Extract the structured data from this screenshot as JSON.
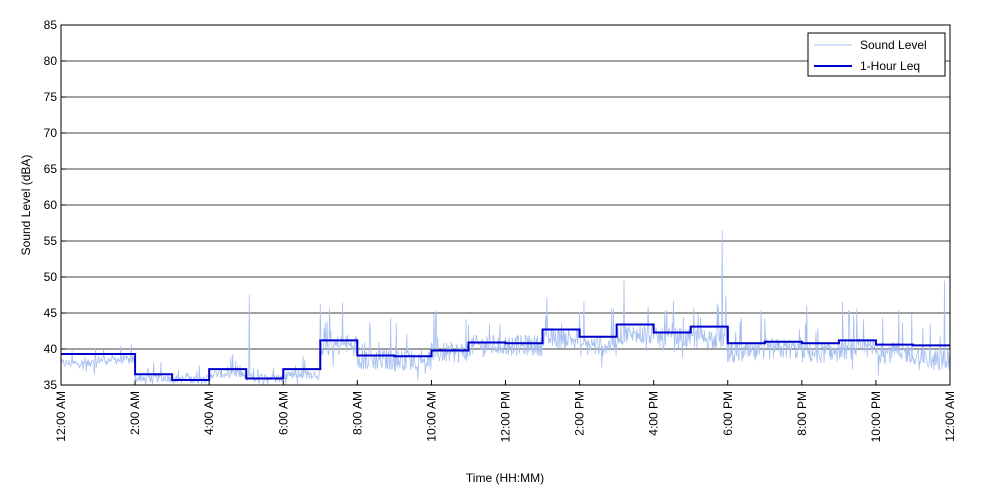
{
  "chart_data": {
    "type": "line",
    "title": "",
    "xlabel": "Time (HH:MM)",
    "ylabel": "Sound Level (dBA)",
    "ylim": [
      35,
      85
    ],
    "yticks": [
      35,
      40,
      45,
      50,
      55,
      60,
      65,
      70,
      75,
      80,
      85
    ],
    "xlim_hours": [
      0,
      24
    ],
    "xticks": [
      {
        "hour": 0,
        "label": "12:00 AM"
      },
      {
        "hour": 2,
        "label": "2:00 AM"
      },
      {
        "hour": 4,
        "label": "4:00 AM"
      },
      {
        "hour": 6,
        "label": "6:00 AM"
      },
      {
        "hour": 8,
        "label": "8:00 AM"
      },
      {
        "hour": 10,
        "label": "10:00 AM"
      },
      {
        "hour": 12,
        "label": "12:00 PM"
      },
      {
        "hour": 14,
        "label": "2:00 PM"
      },
      {
        "hour": 16,
        "label": "4:00 PM"
      },
      {
        "hour": 18,
        "label": "6:00 PM"
      },
      {
        "hour": 20,
        "label": "8:00 PM"
      },
      {
        "hour": 22,
        "label": "10:00 PM"
      },
      {
        "hour": 24,
        "label": "12:00 AM"
      }
    ],
    "grid": "horizontal",
    "legend_position": "top-right",
    "series": [
      {
        "name": "Sound Level",
        "color": "#a8c0f0",
        "hourly_base": [
          38,
          38.5,
          36,
          35.8,
          36.5,
          36,
          36.5,
          40.5,
          38.5,
          38.5,
          39.5,
          40.5,
          40.5,
          41.5,
          40.5,
          42,
          41.5,
          41.5,
          39.5,
          40,
          39.5,
          40,
          39.5,
          38.5
        ],
        "peaks": [
          {
            "hour": 5.08,
            "value": 47.5
          },
          {
            "hour": 7.6,
            "value": 46.5
          },
          {
            "hour": 17.85,
            "value": 56.5
          },
          {
            "hour": 15.2,
            "value": 49.5
          },
          {
            "hour": 23.85,
            "value": 49.5
          }
        ]
      },
      {
        "name": "1-Hour Leq",
        "color": "#0000cc",
        "values": [
          39.3,
          39.3,
          36.5,
          35.7,
          37.2,
          35.9,
          37.2,
          41.2,
          39.1,
          39.0,
          39.8,
          40.9,
          40.8,
          42.7,
          41.7,
          43.4,
          42.3,
          43.1,
          40.8,
          41.0,
          40.8,
          41.2,
          40.6,
          40.5
        ]
      }
    ]
  }
}
